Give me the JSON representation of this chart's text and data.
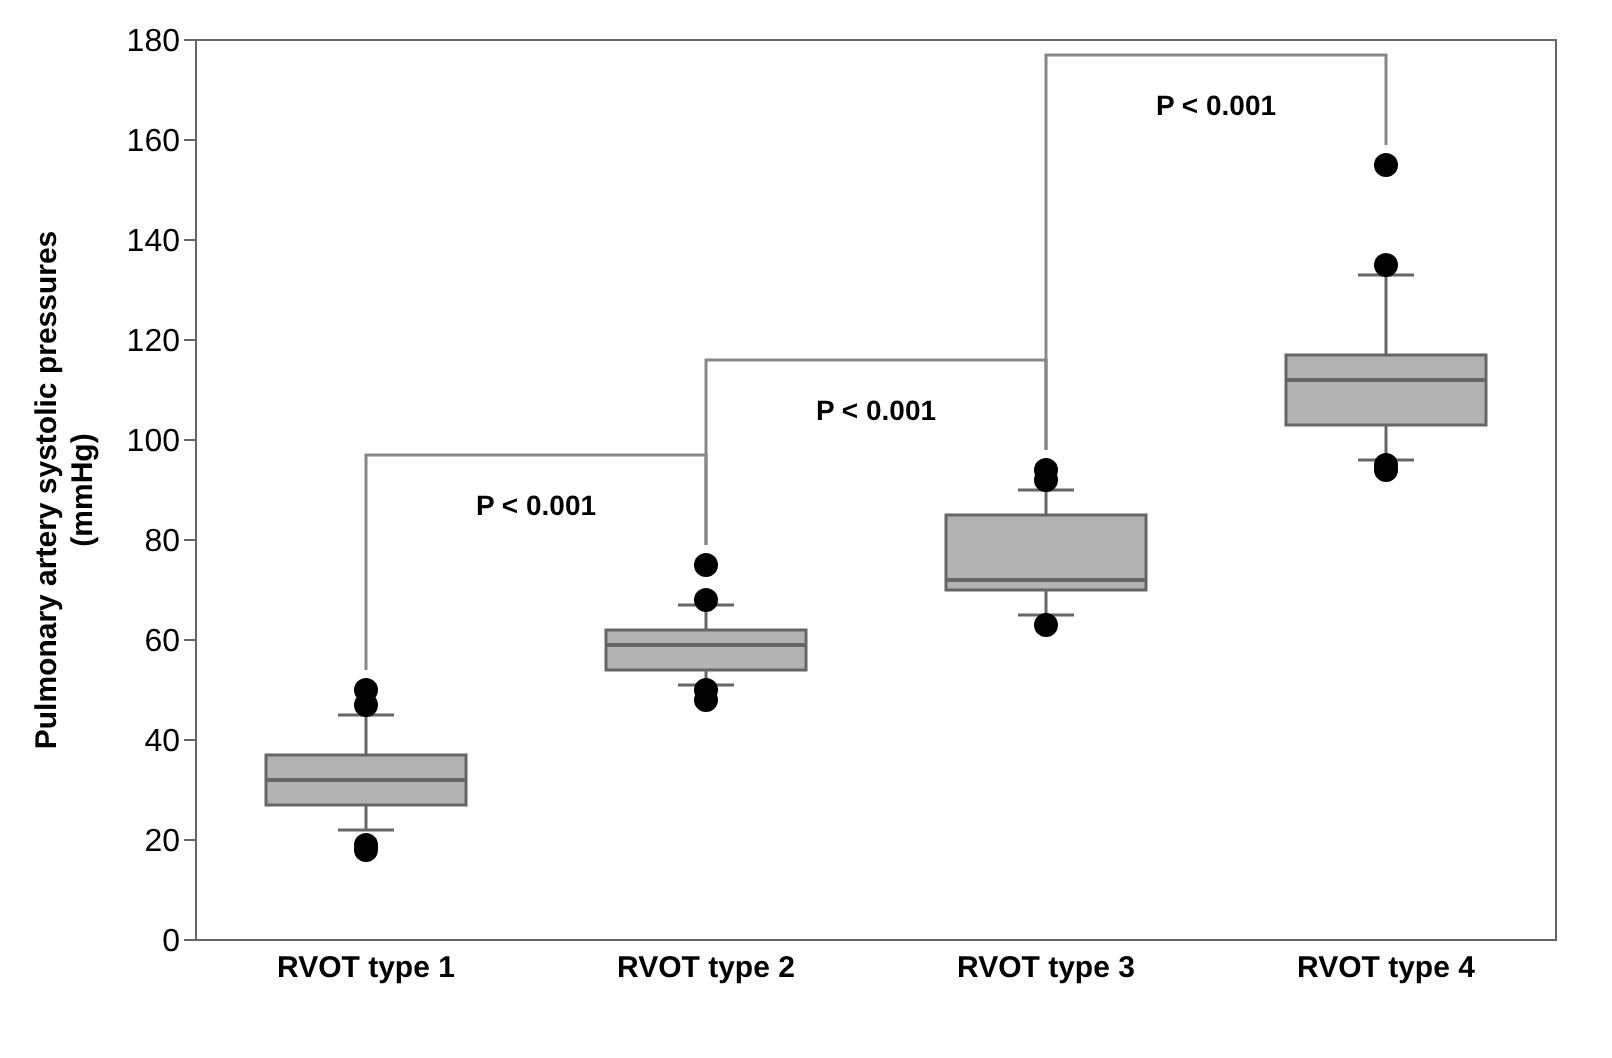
{
  "chart_data": {
    "type": "box",
    "ylabel": "Pulmonary artery systolic pressures (mmHg)",
    "categories": [
      "RVOT type 1",
      "RVOT type 2",
      "RVOT type 3",
      "RVOT type 4"
    ],
    "boxes": [
      {
        "low": 22,
        "q1": 27,
        "median": 32,
        "q3": 37,
        "high": 45,
        "outliers": [
          18,
          19,
          47,
          50
        ]
      },
      {
        "low": 51,
        "q1": 54,
        "median": 59,
        "q3": 62,
        "high": 67,
        "outliers": [
          48,
          50,
          68,
          75
        ]
      },
      {
        "low": 65,
        "q1": 70,
        "median": 72,
        "q3": 85,
        "high": 90,
        "outliers": [
          63,
          92,
          94
        ]
      },
      {
        "low": 96,
        "q1": 103,
        "median": 112,
        "q3": 117,
        "high": 133,
        "outliers": [
          94,
          95,
          135,
          155
        ]
      }
    ],
    "color": "#b3b3b3",
    "ylim": [
      0,
      180
    ],
    "yticks": [
      0,
      20,
      40,
      60,
      80,
      100,
      120,
      140,
      160,
      180
    ],
    "grid": false,
    "annotations": [
      "P < 0.001",
      "P < 0.001",
      "P < 0.001"
    ]
  }
}
